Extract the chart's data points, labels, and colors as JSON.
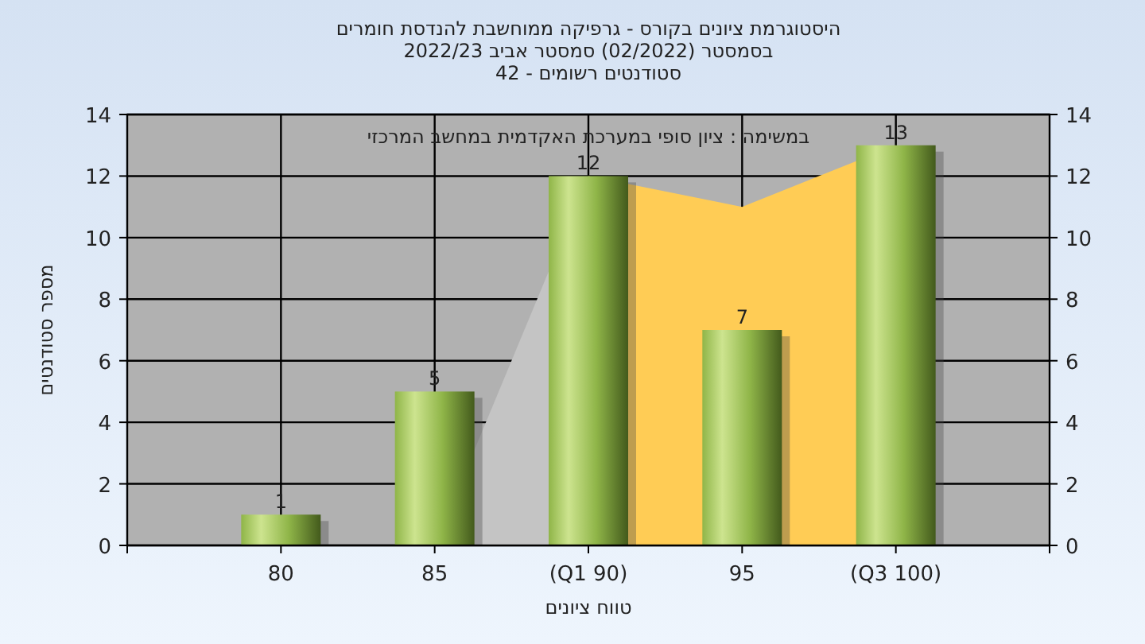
{
  "chart_data": {
    "type": "bar",
    "title": "היסטוגרמת ציונים בקורס - גרפיקה ממוחשבת להנדסת חומרים\nבסמסטר  (02/2022)  סמסטר אביב 2022/23\nסטודנטים רשומים - 42",
    "xlabel": "טווח ציונים",
    "ylabel": "מספר סטודנטים",
    "annotations": [
      "במשימה : ציון סופי במערכת האקדמית במחשב המרכזי"
    ],
    "categories": [
      "80",
      "85",
      "(Q1 90)",
      "95",
      "(Q3 100)"
    ],
    "series": [
      {
        "type": "area",
        "color": "#c4c4c4",
        "values": [
          null,
          0,
          12,
          null,
          null
        ]
      },
      {
        "type": "area",
        "color": "#ffcc55",
        "values": [
          null,
          null,
          12,
          11,
          13
        ]
      },
      {
        "color": "#8fb548",
        "values": [
          1,
          5,
          12,
          7,
          13
        ],
        "value_labels": [
          "1",
          "5",
          "12",
          "7",
          "13"
        ]
      }
    ],
    "ylim": [
      0,
      14
    ],
    "yticks": [
      0,
      2,
      4,
      6,
      8,
      10,
      12,
      14
    ],
    "y2lim": [
      0,
      14
    ],
    "y2ticks": [
      0,
      2,
      4,
      6,
      8,
      10,
      12,
      14
    ],
    "grid": true
  }
}
